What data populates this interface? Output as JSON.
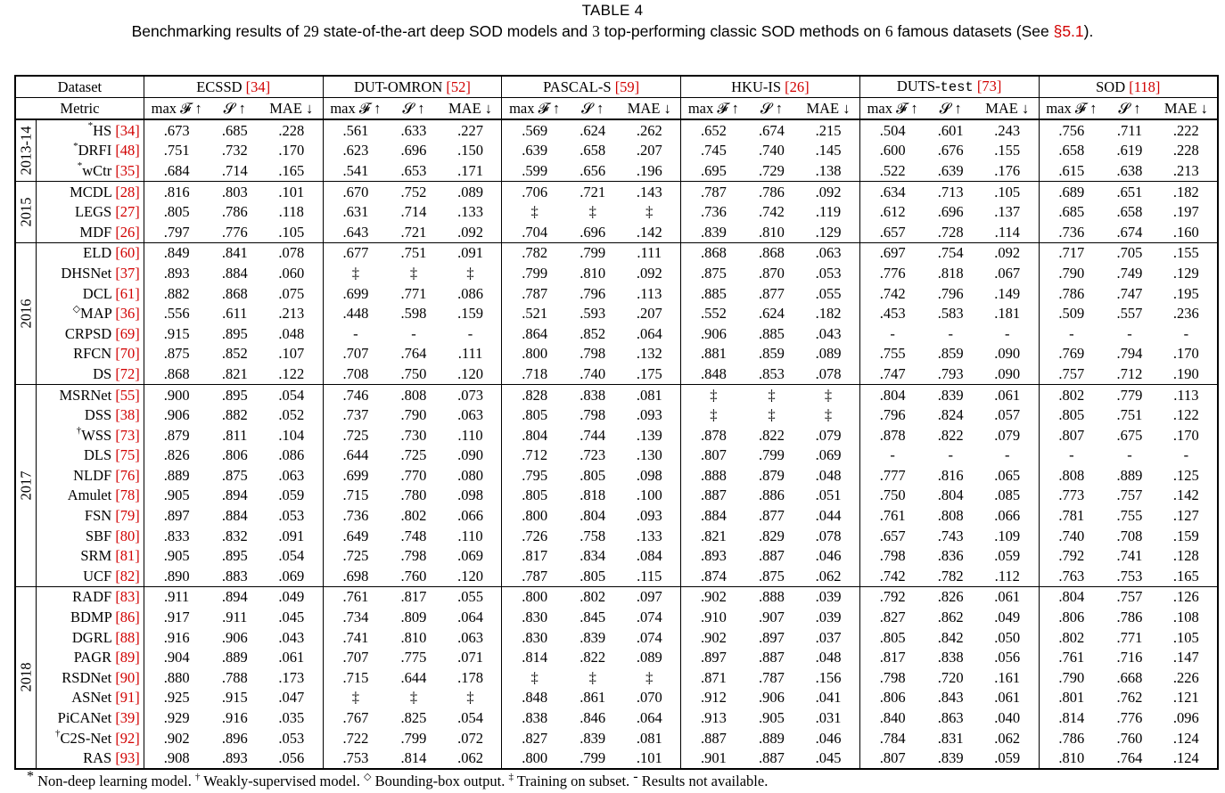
{
  "table": {
    "label": "TABLE 4",
    "caption": {
      "pre": "Benchmarking results of ",
      "n_models": "29",
      "mid1": " state-of-the-art deep SOD models and ",
      "n_classic": "3",
      "mid2": " top-performing classic SOD methods on ",
      "n_datasets": "6",
      "mid3": " famous datasets (See ",
      "section_ref": "§5.1",
      "post": ")."
    },
    "header": {
      "dataset_label": "Dataset",
      "metric_label": "Metric",
      "datasets": [
        {
          "name": "ECSSD",
          "ref": "[34]",
          "name_style": "normal"
        },
        {
          "name": "DUT-OMRON",
          "ref": "[52]",
          "name_style": "normal"
        },
        {
          "name": "PASCAL-S",
          "ref": "[59]",
          "name_style": "normal"
        },
        {
          "name": "HKU-IS",
          "ref": "[26]",
          "name_style": "normal"
        },
        {
          "name": "DUTS-",
          "name_mono": "test",
          "ref": "[73]",
          "name_style": "mixed"
        },
        {
          "name": "SOD",
          "ref": "[118]",
          "name_style": "normal"
        }
      ],
      "metrics": [
        "max 𝓕 ↑",
        "𝓢 ↑",
        "MAE ↓"
      ]
    },
    "groups": [
      {
        "year": "2013-14",
        "rows": [
          {
            "mark": "*",
            "model": "HS",
            "ref": "[34]",
            "vals": [
              ".673",
              ".685",
              ".228",
              ".561",
              ".633",
              ".227",
              ".569",
              ".624",
              ".262",
              ".652",
              ".674",
              ".215",
              ".504",
              ".601",
              ".243",
              ".756",
              ".711",
              ".222"
            ]
          },
          {
            "mark": "*",
            "model": "DRFI",
            "ref": "[48]",
            "vals": [
              ".751",
              ".732",
              ".170",
              ".623",
              ".696",
              ".150",
              ".639",
              ".658",
              ".207",
              ".745",
              ".740",
              ".145",
              ".600",
              ".676",
              ".155",
              ".658",
              ".619",
              ".228"
            ]
          },
          {
            "mark": "*",
            "model": "wCtr",
            "ref": "[35]",
            "vals": [
              ".684",
              ".714",
              ".165",
              ".541",
              ".653",
              ".171",
              ".599",
              ".656",
              ".196",
              ".695",
              ".729",
              ".138",
              ".522",
              ".639",
              ".176",
              ".615",
              ".638",
              ".213"
            ]
          }
        ]
      },
      {
        "year": "2015",
        "rows": [
          {
            "mark": "",
            "model": "MCDL",
            "ref": "[28]",
            "vals": [
              ".816",
              ".803",
              ".101",
              ".670",
              ".752",
              ".089",
              ".706",
              ".721",
              ".143",
              ".787",
              ".786",
              ".092",
              ".634",
              ".713",
              ".105",
              ".689",
              ".651",
              ".182"
            ]
          },
          {
            "mark": "",
            "model": "LEGS",
            "ref": "[27]",
            "vals": [
              ".805",
              ".786",
              ".118",
              ".631",
              ".714",
              ".133",
              "‡",
              "‡",
              "‡",
              ".736",
              ".742",
              ".119",
              ".612",
              ".696",
              ".137",
              ".685",
              ".658",
              ".197"
            ]
          },
          {
            "mark": "",
            "model": "MDF",
            "ref": "[26]",
            "vals": [
              ".797",
              ".776",
              ".105",
              ".643",
              ".721",
              ".092",
              ".704",
              ".696",
              ".142",
              ".839",
              ".810",
              ".129",
              ".657",
              ".728",
              ".114",
              ".736",
              ".674",
              ".160"
            ]
          }
        ]
      },
      {
        "year": "2016",
        "rows": [
          {
            "mark": "",
            "model": "ELD",
            "ref": "[60]",
            "vals": [
              ".849",
              ".841",
              ".078",
              ".677",
              ".751",
              ".091",
              ".782",
              ".799",
              ".111",
              ".868",
              ".868",
              ".063",
              ".697",
              ".754",
              ".092",
              ".717",
              ".705",
              ".155"
            ]
          },
          {
            "mark": "",
            "model": "DHSNet",
            "ref": "[37]",
            "vals": [
              ".893",
              ".884",
              ".060",
              "‡",
              "‡",
              "‡",
              ".799",
              ".810",
              ".092",
              ".875",
              ".870",
              ".053",
              ".776",
              ".818",
              ".067",
              ".790",
              ".749",
              ".129"
            ]
          },
          {
            "mark": "",
            "model": "DCL",
            "ref": "[61]",
            "vals": [
              ".882",
              ".868",
              ".075",
              ".699",
              ".771",
              ".086",
              ".787",
              ".796",
              ".113",
              ".885",
              ".877",
              ".055",
              ".742",
              ".796",
              ".149",
              ".786",
              ".747",
              ".195"
            ]
          },
          {
            "mark": "◇",
            "model": "MAP",
            "ref": "[36]",
            "vals": [
              ".556",
              ".611",
              ".213",
              ".448",
              ".598",
              ".159",
              ".521",
              ".593",
              ".207",
              ".552",
              ".624",
              ".182",
              ".453",
              ".583",
              ".181",
              ".509",
              ".557",
              ".236"
            ]
          },
          {
            "mark": "",
            "model": "CRPSD",
            "ref": "[69]",
            "vals": [
              ".915",
              ".895",
              ".048",
              "-",
              "-",
              "-",
              ".864",
              ".852",
              ".064",
              ".906",
              ".885",
              ".043",
              "-",
              "-",
              "-",
              "-",
              "-",
              "-"
            ]
          },
          {
            "mark": "",
            "model": "RFCN",
            "ref": "[70]",
            "vals": [
              ".875",
              ".852",
              ".107",
              ".707",
              ".764",
              ".111",
              ".800",
              ".798",
              ".132",
              ".881",
              ".859",
              ".089",
              ".755",
              ".859",
              ".090",
              ".769",
              ".794",
              ".170"
            ]
          },
          {
            "mark": "",
            "model": "DS",
            "ref": "[72]",
            "vals": [
              ".868",
              ".821",
              ".122",
              ".708",
              ".750",
              ".120",
              ".718",
              ".740",
              ".175",
              ".848",
              ".853",
              ".078",
              ".747",
              ".793",
              ".090",
              ".757",
              ".712",
              ".190"
            ]
          }
        ]
      },
      {
        "year": "2017",
        "rows": [
          {
            "mark": "",
            "model": "MSRNet",
            "ref": "[55]",
            "vals": [
              ".900",
              ".895",
              ".054",
              ".746",
              ".808",
              ".073",
              ".828",
              ".838",
              ".081",
              "‡",
              "‡",
              "‡",
              ".804",
              ".839",
              ".061",
              ".802",
              ".779",
              ".113"
            ]
          },
          {
            "mark": "",
            "model": "DSS",
            "ref": "[38]",
            "vals": [
              ".906",
              ".882",
              ".052",
              ".737",
              ".790",
              ".063",
              ".805",
              ".798",
              ".093",
              "‡",
              "‡",
              "‡",
              ".796",
              ".824",
              ".057",
              ".805",
              ".751",
              ".122"
            ]
          },
          {
            "mark": "†",
            "model": "WSS",
            "ref": "[73]",
            "vals": [
              ".879",
              ".811",
              ".104",
              ".725",
              ".730",
              ".110",
              ".804",
              ".744",
              ".139",
              ".878",
              ".822",
              ".079",
              ".878",
              ".822",
              ".079",
              ".807",
              ".675",
              ".170"
            ]
          },
          {
            "mark": "",
            "model": "DLS",
            "ref": "[75]",
            "vals": [
              ".826",
              ".806",
              ".086",
              ".644",
              ".725",
              ".090",
              ".712",
              ".723",
              ".130",
              ".807",
              ".799",
              ".069",
              "-",
              "-",
              "-",
              "-",
              "-",
              "-"
            ]
          },
          {
            "mark": "",
            "model": "NLDF",
            "ref": "[76]",
            "vals": [
              ".889",
              ".875",
              ".063",
              ".699",
              ".770",
              ".080",
              ".795",
              ".805",
              ".098",
              ".888",
              ".879",
              ".048",
              ".777",
              ".816",
              ".065",
              ".808",
              ".889",
              ".125"
            ]
          },
          {
            "mark": "",
            "model": "Amulet",
            "ref": "[78]",
            "vals": [
              ".905",
              ".894",
              ".059",
              ".715",
              ".780",
              ".098",
              ".805",
              ".818",
              ".100",
              ".887",
              ".886",
              ".051",
              ".750",
              ".804",
              ".085",
              ".773",
              ".757",
              ".142"
            ]
          },
          {
            "mark": "",
            "model": "FSN",
            "ref": "[79]",
            "vals": [
              ".897",
              ".884",
              ".053",
              ".736",
              ".802",
              ".066",
              ".800",
              ".804",
              ".093",
              ".884",
              ".877",
              ".044",
              ".761",
              ".808",
              ".066",
              ".781",
              ".755",
              ".127"
            ]
          },
          {
            "mark": "",
            "model": "SBF",
            "ref": "[80]",
            "vals": [
              ".833",
              ".832",
              ".091",
              ".649",
              ".748",
              ".110",
              ".726",
              ".758",
              ".133",
              ".821",
              ".829",
              ".078",
              ".657",
              ".743",
              ".109",
              ".740",
              ".708",
              ".159"
            ]
          },
          {
            "mark": "",
            "model": "SRM",
            "ref": "[81]",
            "vals": [
              ".905",
              ".895",
              ".054",
              ".725",
              ".798",
              ".069",
              ".817",
              ".834",
              ".084",
              ".893",
              ".887",
              ".046",
              ".798",
              ".836",
              ".059",
              ".792",
              ".741",
              ".128"
            ]
          },
          {
            "mark": "",
            "model": "UCF",
            "ref": "[82]",
            "vals": [
              ".890",
              ".883",
              ".069",
              ".698",
              ".760",
              ".120",
              ".787",
              ".805",
              ".115",
              ".874",
              ".875",
              ".062",
              ".742",
              ".782",
              ".112",
              ".763",
              ".753",
              ".165"
            ]
          }
        ]
      },
      {
        "year": "2018",
        "rows": [
          {
            "mark": "",
            "model": "RADF",
            "ref": "[83]",
            "vals": [
              ".911",
              ".894",
              ".049",
              ".761",
              ".817",
              ".055",
              ".800",
              ".802",
              ".097",
              ".902",
              ".888",
              ".039",
              ".792",
              ".826",
              ".061",
              ".804",
              ".757",
              ".126"
            ]
          },
          {
            "mark": "",
            "model": "BDMP",
            "ref": "[86]",
            "vals": [
              ".917",
              ".911",
              ".045",
              ".734",
              ".809",
              ".064",
              ".830",
              ".845",
              ".074",
              ".910",
              ".907",
              ".039",
              ".827",
              ".862",
              ".049",
              ".806",
              ".786",
              ".108"
            ]
          },
          {
            "mark": "",
            "model": "DGRL",
            "ref": "[88]",
            "vals": [
              ".916",
              ".906",
              ".043",
              ".741",
              ".810",
              ".063",
              ".830",
              ".839",
              ".074",
              ".902",
              ".897",
              ".037",
              ".805",
              ".842",
              ".050",
              ".802",
              ".771",
              ".105"
            ]
          },
          {
            "mark": "",
            "model": "PAGR",
            "ref": "[89]",
            "vals": [
              ".904",
              ".889",
              ".061",
              ".707",
              ".775",
              ".071",
              ".814",
              ".822",
              ".089",
              ".897",
              ".887",
              ".048",
              ".817",
              ".838",
              ".056",
              ".761",
              ".716",
              ".147"
            ]
          },
          {
            "mark": "",
            "model": "RSDNet",
            "ref": "[90]",
            "vals": [
              ".880",
              ".788",
              ".173",
              ".715",
              ".644",
              ".178",
              "‡",
              "‡",
              "‡",
              ".871",
              ".787",
              ".156",
              ".798",
              ".720",
              ".161",
              ".790",
              ".668",
              ".226"
            ]
          },
          {
            "mark": "",
            "model": "ASNet",
            "ref": "[91]",
            "vals": [
              ".925",
              ".915",
              ".047",
              "‡",
              "‡",
              "‡",
              ".848",
              ".861",
              ".070",
              ".912",
              ".906",
              ".041",
              ".806",
              ".843",
              ".061",
              ".801",
              ".762",
              ".121"
            ]
          },
          {
            "mark": "",
            "model": "PiCANet",
            "ref": "[39]",
            "vals": [
              ".929",
              ".916",
              ".035",
              ".767",
              ".825",
              ".054",
              ".838",
              ".846",
              ".064",
              ".913",
              ".905",
              ".031",
              ".840",
              ".863",
              ".040",
              ".814",
              ".776",
              ".096"
            ]
          },
          {
            "mark": "†",
            "model": "C2S-Net",
            "ref": "[92]",
            "vals": [
              ".902",
              ".896",
              ".053",
              ".722",
              ".799",
              ".072",
              ".827",
              ".839",
              ".081",
              ".887",
              ".889",
              ".046",
              ".784",
              ".831",
              ".062",
              ".786",
              ".760",
              ".124"
            ]
          },
          {
            "mark": "",
            "model": "RAS",
            "ref": "[93]",
            "vals": [
              ".908",
              ".893",
              ".056",
              ".753",
              ".814",
              ".062",
              ".800",
              ".799",
              ".101",
              ".901",
              ".887",
              ".045",
              ".807",
              ".839",
              ".059",
              ".810",
              ".764",
              ".124"
            ]
          }
        ]
      }
    ],
    "footnote": [
      {
        "sym": "*",
        "text": " Non-deep learning model. "
      },
      {
        "sym": "†",
        "text": " Weakly-supervised model. "
      },
      {
        "sym": "◇",
        "text": " Bounding-box output. "
      },
      {
        "sym": "‡",
        "text": " Training on subset. "
      },
      {
        "sym": "-",
        "text": " Results not available."
      }
    ],
    "colors": {
      "reference": "#d10000",
      "text": "#000000"
    }
  }
}
